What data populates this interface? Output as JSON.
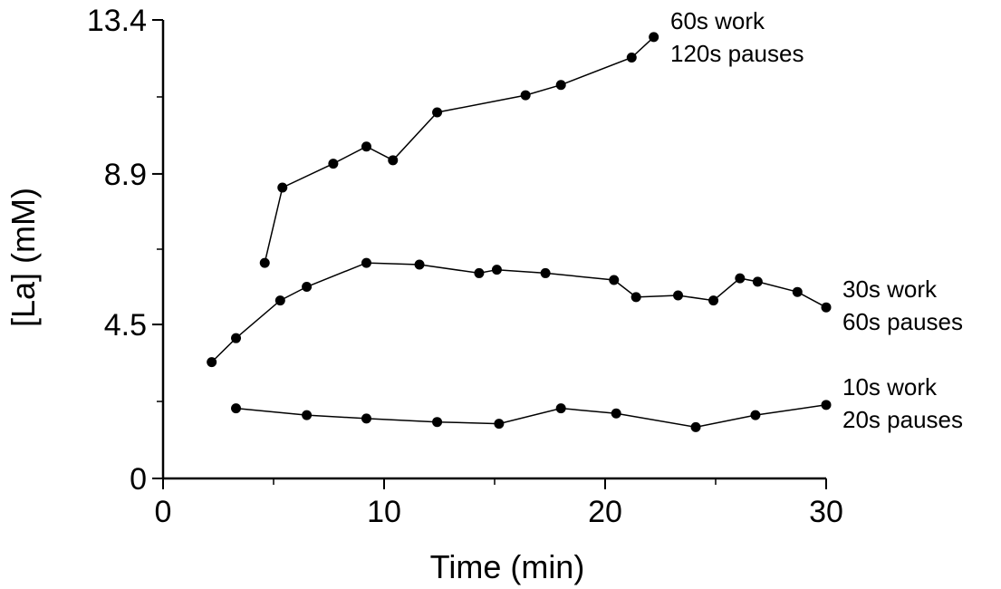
{
  "chart_data": {
    "type": "line",
    "title": "",
    "xlabel": "Time (min)",
    "ylabel": "[La] (mM)",
    "xlim": [
      0,
      30
    ],
    "ylim": [
      0,
      13.4
    ],
    "x_ticks": [
      0,
      10,
      20,
      30
    ],
    "x_tick_labels": [
      "0",
      "10",
      "20",
      "30"
    ],
    "y_ticks": [
      0,
      4.5,
      8.9,
      13.4
    ],
    "y_tick_labels": [
      "0",
      "4.5",
      "8.9",
      "13.4"
    ],
    "grid": false,
    "legend": "none",
    "series": [
      {
        "label_lines": [
          "60s work",
          "120s pauses"
        ],
        "x": [
          4.6,
          5.4,
          7.7,
          9.2,
          10.4,
          12.4,
          16.4,
          18.0,
          21.2,
          22.2
        ],
        "y": [
          6.3,
          8.5,
          9.2,
          9.7,
          9.3,
          10.7,
          11.2,
          11.5,
          12.3,
          12.9
        ]
      },
      {
        "label_lines": [
          "30s work",
          "60s pauses"
        ],
        "x": [
          2.2,
          3.3,
          5.3,
          6.5,
          9.2,
          11.6,
          14.3,
          15.1,
          17.3,
          20.4,
          21.4,
          23.3,
          24.9,
          26.1,
          26.9,
          28.7,
          30.0
        ],
        "y": [
          3.4,
          4.1,
          5.2,
          5.6,
          6.3,
          6.25,
          6.0,
          6.1,
          6.0,
          5.8,
          5.3,
          5.35,
          5.2,
          5.85,
          5.75,
          5.45,
          5.0
        ]
      },
      {
        "label_lines": [
          "10s work",
          "20s pauses"
        ],
        "x": [
          3.3,
          6.5,
          9.2,
          12.4,
          15.2,
          18.0,
          20.5,
          24.1,
          26.8,
          30.0
        ],
        "y": [
          2.05,
          1.85,
          1.75,
          1.65,
          1.6,
          2.05,
          1.9,
          1.5,
          1.85,
          2.15
        ]
      }
    ]
  }
}
